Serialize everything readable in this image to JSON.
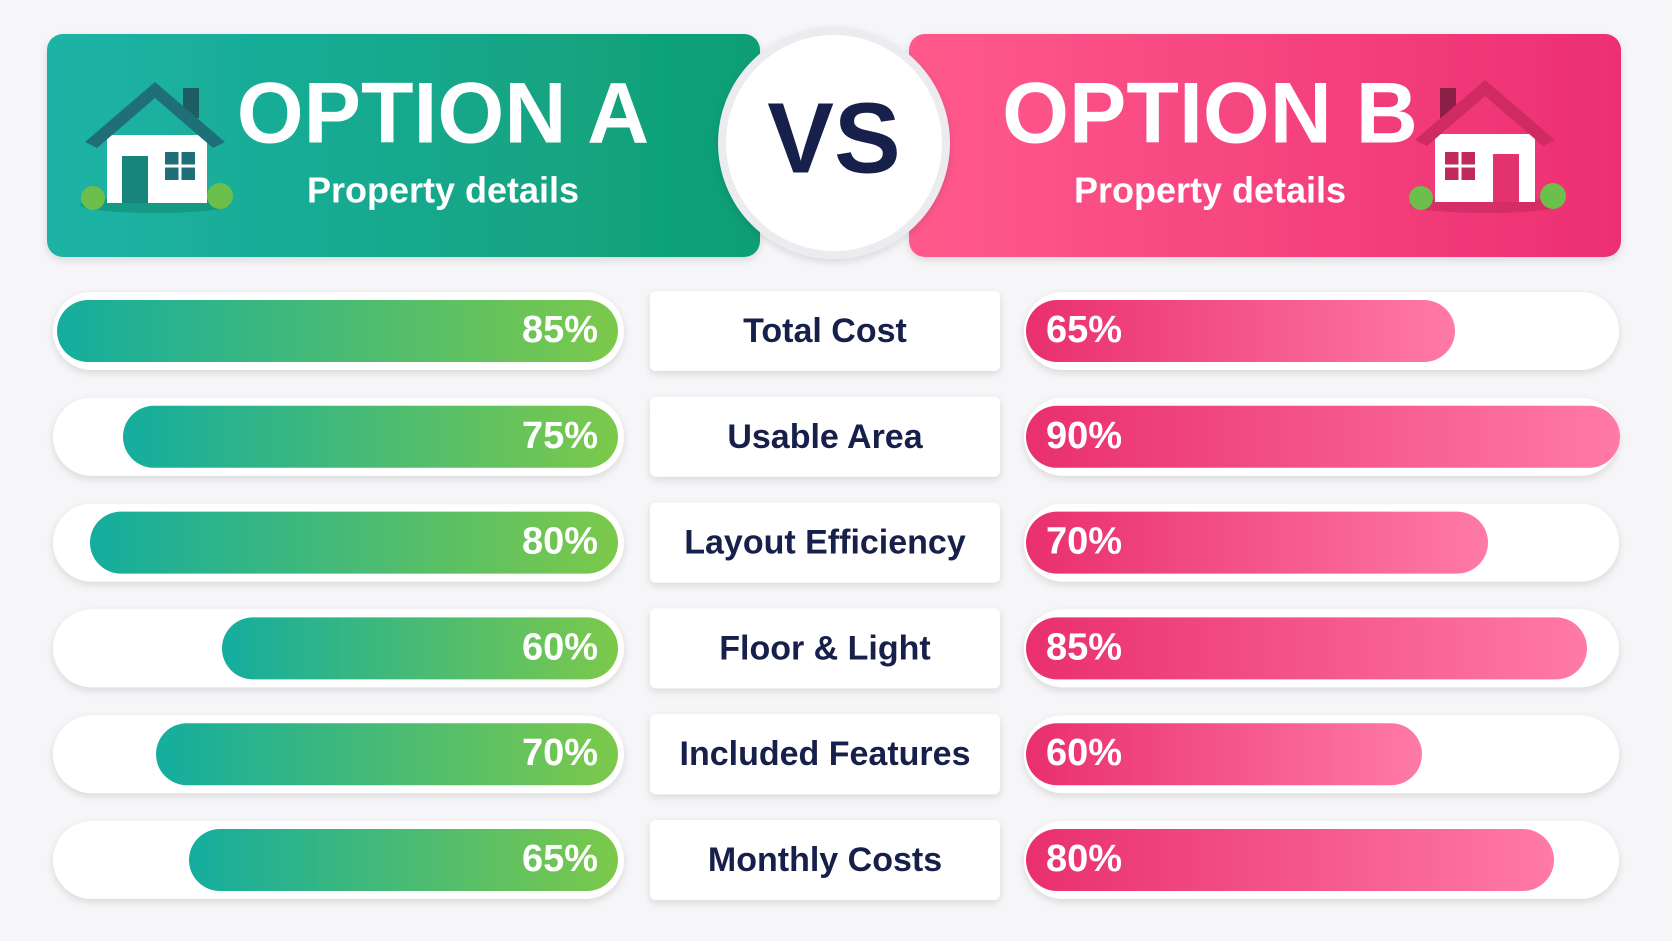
{
  "chart_data": {
    "type": "butterfly",
    "center_label": "VS",
    "categories": [
      "Total Cost",
      "Usable Area",
      "Layout Efficiency",
      "Floor & Light",
      "Included Features",
      "Monthly Costs"
    ],
    "series": [
      {
        "name": "OPTION A",
        "subtitle": "Property details",
        "color": "#14ad9f",
        "values": [
          85,
          75,
          80,
          60,
          70,
          65
        ],
        "value_labels": [
          "85%",
          "75%",
          "80%",
          "60%",
          "70%",
          "65%"
        ]
      },
      {
        "name": "OPTION B",
        "subtitle": "Property details",
        "color": "#e92f6f",
        "values": [
          65,
          90,
          70,
          85,
          60,
          80
        ],
        "value_labels": [
          "65%",
          "90%",
          "70%",
          "85%",
          "60%",
          "80%"
        ]
      }
    ]
  }
}
